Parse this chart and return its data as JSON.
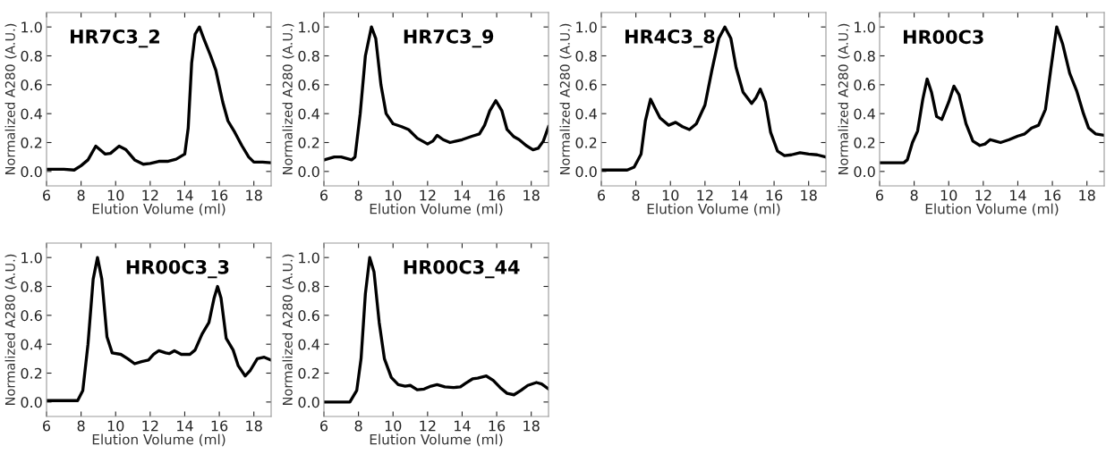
{
  "chart_data": [
    {
      "type": "line",
      "title": "HR7C3_2",
      "xlabel": "Elution Volume (ml)",
      "ylabel": "Normalized A280 (A.U.)",
      "color": "#000000",
      "line_style": "solid",
      "marker": "none",
      "grid": false,
      "legend": false,
      "xlim": [
        6,
        19
      ],
      "ylim": [
        -0.1,
        1.1
      ],
      "xticks": [
        6,
        8,
        10,
        12,
        14,
        16,
        18
      ],
      "yticks": [
        {
          "value": 0,
          "label": "0.0"
        },
        {
          "value": 0.2,
          "label": "0.2"
        },
        {
          "value": 0.4,
          "label": "0.4"
        },
        {
          "value": 0.6,
          "label": "0.6"
        },
        {
          "value": 0.8,
          "label": "0.8"
        },
        {
          "value": 1,
          "label": "1.0"
        }
      ],
      "x": [
        6,
        7,
        7.6,
        8.0,
        8.4,
        8.85,
        9.4,
        9.7,
        10.2,
        10.6,
        11.1,
        11.6,
        12.0,
        12.5,
        13.0,
        13.5,
        14.0,
        14.2,
        14.4,
        14.6,
        14.85,
        15.1,
        15.5,
        15.8,
        16.2,
        16.5,
        16.9,
        17.3,
        17.7,
        18.0,
        18.5,
        19
      ],
      "values": [
        0.015,
        0.015,
        0.01,
        0.04,
        0.08,
        0.175,
        0.12,
        0.125,
        0.175,
        0.15,
        0.08,
        0.05,
        0.055,
        0.07,
        0.07,
        0.085,
        0.12,
        0.3,
        0.75,
        0.95,
        1.0,
        0.92,
        0.8,
        0.7,
        0.48,
        0.35,
        0.27,
        0.18,
        0.1,
        0.065,
        0.065,
        0.06
      ]
    },
    {
      "type": "line",
      "title": "HR7C3_9",
      "xlabel": "Elution Volume (ml)",
      "ylabel": "Normalized A280 (A.U.)",
      "color": "#000000",
      "line_style": "solid",
      "marker": "none",
      "grid": false,
      "legend": false,
      "xlim": [
        6,
        19
      ],
      "ylim": [
        -0.1,
        1.1
      ],
      "xticks": [
        6,
        8,
        10,
        12,
        14,
        16,
        18
      ],
      "yticks": [
        {
          "value": 0,
          "label": "0.0"
        },
        {
          "value": 0.2,
          "label": "0.2"
        },
        {
          "value": 0.4,
          "label": "0.4"
        },
        {
          "value": 0.6,
          "label": "0.6"
        },
        {
          "value": 0.8,
          "label": "0.8"
        },
        {
          "value": 1,
          "label": "1.0"
        }
      ],
      "x": [
        6,
        6.6,
        7.0,
        7.6,
        7.8,
        8.1,
        8.4,
        8.75,
        9.0,
        9.3,
        9.6,
        10.0,
        10.5,
        10.9,
        11.4,
        12.0,
        12.3,
        12.55,
        12.9,
        13.3,
        14.0,
        14.6,
        15.0,
        15.3,
        15.6,
        15.95,
        16.3,
        16.6,
        17.0,
        17.3,
        17.7,
        18.1,
        18.4,
        18.7,
        19
      ],
      "values": [
        0.08,
        0.1,
        0.1,
        0.08,
        0.1,
        0.4,
        0.8,
        1.0,
        0.92,
        0.6,
        0.4,
        0.33,
        0.31,
        0.29,
        0.23,
        0.19,
        0.21,
        0.25,
        0.22,
        0.2,
        0.22,
        0.245,
        0.26,
        0.32,
        0.42,
        0.49,
        0.42,
        0.29,
        0.24,
        0.22,
        0.18,
        0.15,
        0.16,
        0.21,
        0.31
      ]
    },
    {
      "type": "line",
      "title": "HR4C3_8",
      "xlabel": "Elution Volume (ml)",
      "ylabel": "Normalized A280 (A.U.)",
      "color": "#000000",
      "line_style": "solid",
      "marker": "none",
      "grid": false,
      "legend": false,
      "xlim": [
        6,
        19
      ],
      "ylim": [
        -0.1,
        1.1
      ],
      "xticks": [
        6,
        8,
        10,
        12,
        14,
        16,
        18
      ],
      "yticks": [
        {
          "value": 0,
          "label": "0.0"
        },
        {
          "value": 0.2,
          "label": "0.2"
        },
        {
          "value": 0.4,
          "label": "0.4"
        },
        {
          "value": 0.6,
          "label": "0.6"
        },
        {
          "value": 0.8,
          "label": "0.8"
        },
        {
          "value": 1,
          "label": "1.0"
        }
      ],
      "x": [
        6,
        7.5,
        7.9,
        8.3,
        8.55,
        8.85,
        9.1,
        9.4,
        9.9,
        10.3,
        10.7,
        11.1,
        11.5,
        12.0,
        12.4,
        12.8,
        13.15,
        13.5,
        13.8,
        14.2,
        14.7,
        14.95,
        15.2,
        15.5,
        15.8,
        16.2,
        16.6,
        17.0,
        17.5,
        18.0,
        18.5,
        19
      ],
      "values": [
        0.01,
        0.01,
        0.03,
        0.12,
        0.35,
        0.5,
        0.44,
        0.37,
        0.32,
        0.34,
        0.31,
        0.29,
        0.33,
        0.46,
        0.7,
        0.92,
        1.0,
        0.92,
        0.72,
        0.55,
        0.47,
        0.51,
        0.57,
        0.48,
        0.27,
        0.14,
        0.11,
        0.115,
        0.13,
        0.12,
        0.115,
        0.1
      ]
    },
    {
      "type": "line",
      "title": "HR00C3",
      "xlabel": "Elution Volume (ml)",
      "ylabel": "Normalized A280 (A.U.)",
      "color": "#000000",
      "line_style": "solid",
      "marker": "none",
      "grid": false,
      "legend": false,
      "xlim": [
        6,
        19
      ],
      "ylim": [
        -0.1,
        1.1
      ],
      "xticks": [
        6,
        8,
        10,
        12,
        14,
        16,
        18
      ],
      "yticks": [
        {
          "value": 0,
          "label": "0.0"
        },
        {
          "value": 0.2,
          "label": "0.2"
        },
        {
          "value": 0.4,
          "label": "0.4"
        },
        {
          "value": 0.6,
          "label": "0.6"
        },
        {
          "value": 0.8,
          "label": "0.8"
        },
        {
          "value": 1,
          "label": "1.0"
        }
      ],
      "x": [
        6,
        7.4,
        7.6,
        7.9,
        8.2,
        8.5,
        8.75,
        9.0,
        9.3,
        9.6,
        10.0,
        10.3,
        10.6,
        11.0,
        11.4,
        11.8,
        12.1,
        12.4,
        12.7,
        13.0,
        13.5,
        14.0,
        14.4,
        14.8,
        15.2,
        15.6,
        15.9,
        16.25,
        16.6,
        17.0,
        17.4,
        17.8,
        18.1,
        18.5,
        19
      ],
      "values": [
        0.06,
        0.06,
        0.08,
        0.2,
        0.28,
        0.5,
        0.64,
        0.55,
        0.38,
        0.36,
        0.48,
        0.59,
        0.53,
        0.33,
        0.21,
        0.18,
        0.19,
        0.22,
        0.21,
        0.2,
        0.22,
        0.245,
        0.26,
        0.3,
        0.32,
        0.43,
        0.7,
        1.0,
        0.88,
        0.68,
        0.56,
        0.4,
        0.3,
        0.26,
        0.25
      ]
    },
    {
      "type": "line",
      "title": "HR00C3_3",
      "xlabel": "Elution Volume (ml)",
      "ylabel": "Normalized A280 (A.U.)",
      "color": "#000000",
      "line_style": "solid",
      "marker": "none",
      "grid": false,
      "legend": false,
      "xlim": [
        6,
        19
      ],
      "ylim": [
        -0.1,
        1.1
      ],
      "xticks": [
        6,
        8,
        10,
        12,
        14,
        16,
        18
      ],
      "yticks": [
        {
          "value": 0,
          "label": "0.0"
        },
        {
          "value": 0.2,
          "label": "0.2"
        },
        {
          "value": 0.4,
          "label": "0.4"
        },
        {
          "value": 0.6,
          "label": "0.6"
        },
        {
          "value": 0.8,
          "label": "0.8"
        },
        {
          "value": 1,
          "label": "1.0"
        }
      ],
      "x": [
        6,
        7.8,
        8.1,
        8.4,
        8.7,
        8.95,
        9.2,
        9.5,
        9.8,
        10.3,
        10.7,
        11.1,
        11.5,
        11.9,
        12.2,
        12.5,
        12.9,
        13.1,
        13.4,
        13.8,
        14.3,
        14.6,
        15.0,
        15.4,
        15.7,
        15.9,
        16.1,
        16.4,
        16.8,
        17.1,
        17.5,
        17.8,
        18.2,
        18.6,
        19
      ],
      "values": [
        0.01,
        0.01,
        0.08,
        0.4,
        0.85,
        1.0,
        0.85,
        0.45,
        0.34,
        0.33,
        0.3,
        0.265,
        0.28,
        0.29,
        0.33,
        0.355,
        0.34,
        0.335,
        0.355,
        0.33,
        0.33,
        0.36,
        0.47,
        0.55,
        0.72,
        0.8,
        0.72,
        0.44,
        0.36,
        0.25,
        0.18,
        0.22,
        0.3,
        0.31,
        0.29
      ]
    },
    {
      "type": "line",
      "title": "HR00C3_44",
      "xlabel": "Elution Volume (ml)",
      "ylabel": "Normalized A280 (A.U.)",
      "color": "#000000",
      "line_style": "solid",
      "marker": "none",
      "grid": false,
      "legend": false,
      "xlim": [
        6,
        19
      ],
      "ylim": [
        -0.1,
        1.1
      ],
      "xticks": [
        6,
        8,
        10,
        12,
        14,
        16,
        18
      ],
      "yticks": [
        {
          "value": 0,
          "label": "0.0"
        },
        {
          "value": 0.2,
          "label": "0.2"
        },
        {
          "value": 0.4,
          "label": "0.4"
        },
        {
          "value": 0.6,
          "label": "0.6"
        },
        {
          "value": 0.8,
          "label": "0.8"
        },
        {
          "value": 1,
          "label": "1.0"
        }
      ],
      "x": [
        6,
        7.5,
        7.9,
        8.15,
        8.4,
        8.65,
        8.9,
        9.2,
        9.5,
        9.9,
        10.3,
        10.7,
        11.0,
        11.4,
        11.8,
        12.2,
        12.55,
        13.0,
        13.5,
        13.9,
        14.2,
        14.6,
        14.9,
        15.4,
        15.8,
        16.2,
        16.6,
        17.0,
        17.4,
        17.8,
        18.3,
        18.6,
        19
      ],
      "values": [
        0.0,
        0.0,
        0.08,
        0.3,
        0.75,
        1.0,
        0.9,
        0.55,
        0.3,
        0.17,
        0.12,
        0.11,
        0.115,
        0.085,
        0.09,
        0.11,
        0.12,
        0.105,
        0.1,
        0.105,
        0.13,
        0.16,
        0.165,
        0.18,
        0.15,
        0.1,
        0.06,
        0.05,
        0.08,
        0.115,
        0.135,
        0.125,
        0.09
      ]
    }
  ]
}
